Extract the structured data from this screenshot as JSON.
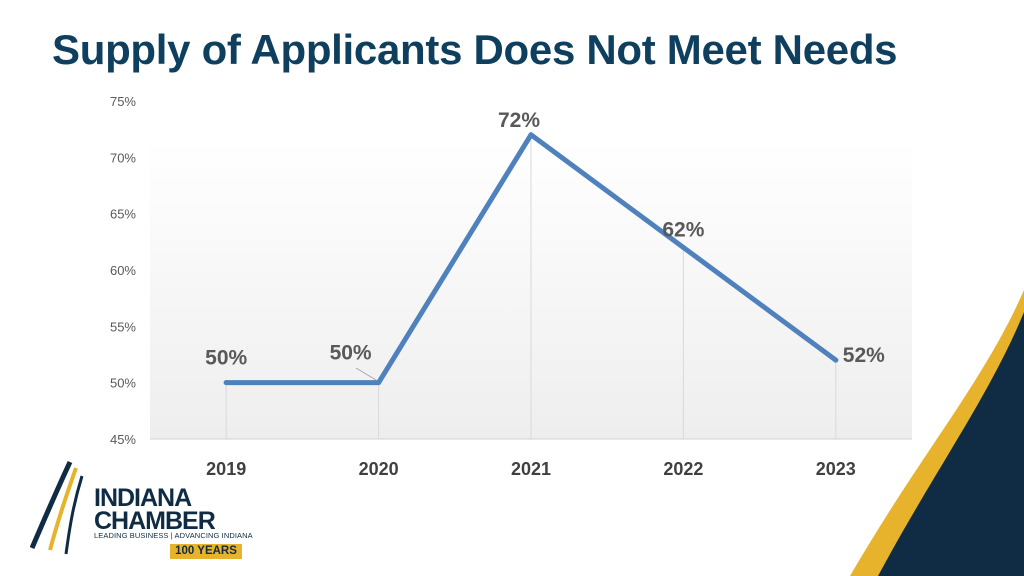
{
  "title": "Supply of Applicants Does Not Meet Needs",
  "colors": {
    "title": "#0f3f5e",
    "line": "#4f81bd",
    "navy": "#0f2c44",
    "gold": "#e7b32c"
  },
  "chart_data": {
    "type": "line",
    "title": "",
    "xlabel": "",
    "ylabel": "",
    "categories": [
      "2019",
      "2020",
      "2021",
      "2022",
      "2023"
    ],
    "series": [
      {
        "values": [
          50,
          50,
          72,
          62,
          52
        ]
      }
    ],
    "data_labels": [
      "50%",
      "50%",
      "72%",
      "62%",
      "52%"
    ],
    "ylim": [
      45,
      75
    ],
    "yticks": [
      45,
      50,
      55,
      60,
      65,
      70,
      75
    ],
    "ytick_labels": [
      "45%",
      "50%",
      "55%",
      "60%",
      "65%",
      "70%",
      "75%"
    ],
    "grid": false,
    "legend": "none"
  },
  "logo": {
    "line1": "INDIANA",
    "line2": "CHAMBER",
    "tagline": "LEADING BUSINESS | ADVANCING INDIANA",
    "badge": "100 YEARS"
  }
}
